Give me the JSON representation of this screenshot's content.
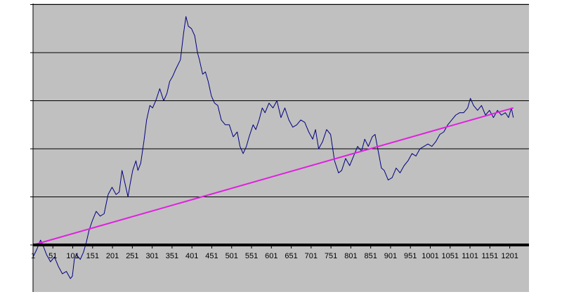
{
  "chart_data": {
    "type": "line",
    "title": "",
    "xlabel": "",
    "ylabel": "",
    "x_tick_labels": [
      "1",
      "51",
      "101",
      "151",
      "201",
      "251",
      "301",
      "351",
      "401",
      "451",
      "501",
      "551",
      "601",
      "651",
      "701",
      "751",
      "801",
      "851",
      "901",
      "951",
      "1001",
      "1051",
      "1101",
      "1151",
      "1201"
    ],
    "xlim": [
      1,
      1221
    ],
    "ylim": [
      -1,
      5
    ],
    "gridlines": true,
    "legend": "none",
    "colors": {
      "plot_background": "#c0c0c0",
      "price_line": "#000080",
      "trend_line": "#e020e0",
      "zero_line": "#000000",
      "gridline": "#000000"
    },
    "series": [
      {
        "type": "line",
        "points": [
          [
            1,
            -0.25
          ],
          [
            10,
            -0.1
          ],
          [
            20,
            0.1
          ],
          [
            28,
            -0.05
          ],
          [
            35,
            -0.2
          ],
          [
            45,
            -0.35
          ],
          [
            55,
            -0.25
          ],
          [
            65,
            -0.45
          ],
          [
            75,
            -0.6
          ],
          [
            85,
            -0.55
          ],
          [
            95,
            -0.7
          ],
          [
            100,
            -0.65
          ],
          [
            105,
            -0.3
          ],
          [
            110,
            -0.2
          ],
          [
            120,
            -0.3
          ],
          [
            128,
            -0.15
          ],
          [
            135,
            0.05
          ],
          [
            142,
            0.3
          ],
          [
            150,
            0.5
          ],
          [
            160,
            0.7
          ],
          [
            170,
            0.6
          ],
          [
            180,
            0.65
          ],
          [
            190,
            1.05
          ],
          [
            200,
            1.2
          ],
          [
            210,
            1.05
          ],
          [
            218,
            1.1
          ],
          [
            225,
            1.55
          ],
          [
            232,
            1.3
          ],
          [
            240,
            1.0
          ],
          [
            245,
            1.25
          ],
          [
            252,
            1.55
          ],
          [
            260,
            1.75
          ],
          [
            265,
            1.55
          ],
          [
            272,
            1.7
          ],
          [
            280,
            2.15
          ],
          [
            287,
            2.6
          ],
          [
            295,
            2.9
          ],
          [
            302,
            2.85
          ],
          [
            310,
            3.0
          ],
          [
            320,
            3.25
          ],
          [
            330,
            3.0
          ],
          [
            338,
            3.15
          ],
          [
            345,
            3.4
          ],
          [
            352,
            3.5
          ],
          [
            360,
            3.65
          ],
          [
            366,
            3.75
          ],
          [
            372,
            3.85
          ],
          [
            380,
            4.4
          ],
          [
            386,
            4.75
          ],
          [
            392,
            4.55
          ],
          [
            400,
            4.5
          ],
          [
            408,
            4.35
          ],
          [
            415,
            4.0
          ],
          [
            420,
            3.85
          ],
          [
            428,
            3.55
          ],
          [
            435,
            3.6
          ],
          [
            442,
            3.4
          ],
          [
            450,
            3.1
          ],
          [
            458,
            2.95
          ],
          [
            466,
            2.9
          ],
          [
            475,
            2.6
          ],
          [
            485,
            2.5
          ],
          [
            495,
            2.5
          ],
          [
            505,
            2.25
          ],
          [
            515,
            2.35
          ],
          [
            522,
            2.05
          ],
          [
            530,
            1.9
          ],
          [
            538,
            2.05
          ],
          [
            545,
            2.25
          ],
          [
            555,
            2.5
          ],
          [
            562,
            2.4
          ],
          [
            570,
            2.6
          ],
          [
            578,
            2.85
          ],
          [
            585,
            2.75
          ],
          [
            595,
            2.95
          ],
          [
            605,
            2.85
          ],
          [
            615,
            3.0
          ],
          [
            625,
            2.65
          ],
          [
            635,
            2.85
          ],
          [
            645,
            2.6
          ],
          [
            655,
            2.45
          ],
          [
            665,
            2.5
          ],
          [
            675,
            2.6
          ],
          [
            685,
            2.55
          ],
          [
            695,
            2.35
          ],
          [
            705,
            2.2
          ],
          [
            712,
            2.4
          ],
          [
            720,
            2.0
          ],
          [
            730,
            2.15
          ],
          [
            740,
            2.4
          ],
          [
            750,
            2.3
          ],
          [
            760,
            1.75
          ],
          [
            770,
            1.5
          ],
          [
            778,
            1.55
          ],
          [
            788,
            1.8
          ],
          [
            798,
            1.65
          ],
          [
            808,
            1.85
          ],
          [
            818,
            2.05
          ],
          [
            828,
            1.95
          ],
          [
            836,
            2.2
          ],
          [
            845,
            2.05
          ],
          [
            855,
            2.25
          ],
          [
            862,
            2.3
          ],
          [
            870,
            1.95
          ],
          [
            878,
            1.6
          ],
          [
            885,
            1.55
          ],
          [
            895,
            1.35
          ],
          [
            905,
            1.4
          ],
          [
            915,
            1.6
          ],
          [
            925,
            1.5
          ],
          [
            935,
            1.65
          ],
          [
            945,
            1.75
          ],
          [
            955,
            1.9
          ],
          [
            965,
            1.85
          ],
          [
            975,
            2.0
          ],
          [
            985,
            2.05
          ],
          [
            995,
            2.1
          ],
          [
            1005,
            2.05
          ],
          [
            1015,
            2.15
          ],
          [
            1025,
            2.3
          ],
          [
            1035,
            2.35
          ],
          [
            1045,
            2.5
          ],
          [
            1055,
            2.6
          ],
          [
            1065,
            2.7
          ],
          [
            1075,
            2.75
          ],
          [
            1085,
            2.75
          ],
          [
            1095,
            2.85
          ],
          [
            1102,
            3.05
          ],
          [
            1110,
            2.9
          ],
          [
            1120,
            2.8
          ],
          [
            1130,
            2.9
          ],
          [
            1140,
            2.7
          ],
          [
            1150,
            2.8
          ],
          [
            1160,
            2.65
          ],
          [
            1170,
            2.8
          ],
          [
            1180,
            2.7
          ],
          [
            1190,
            2.75
          ],
          [
            1198,
            2.65
          ],
          [
            1205,
            2.85
          ],
          [
            1210,
            2.65
          ]
        ]
      },
      {
        "type": "line",
        "points": [
          [
            1,
            0.0
          ],
          [
            1210,
            2.85
          ]
        ]
      }
    ]
  }
}
